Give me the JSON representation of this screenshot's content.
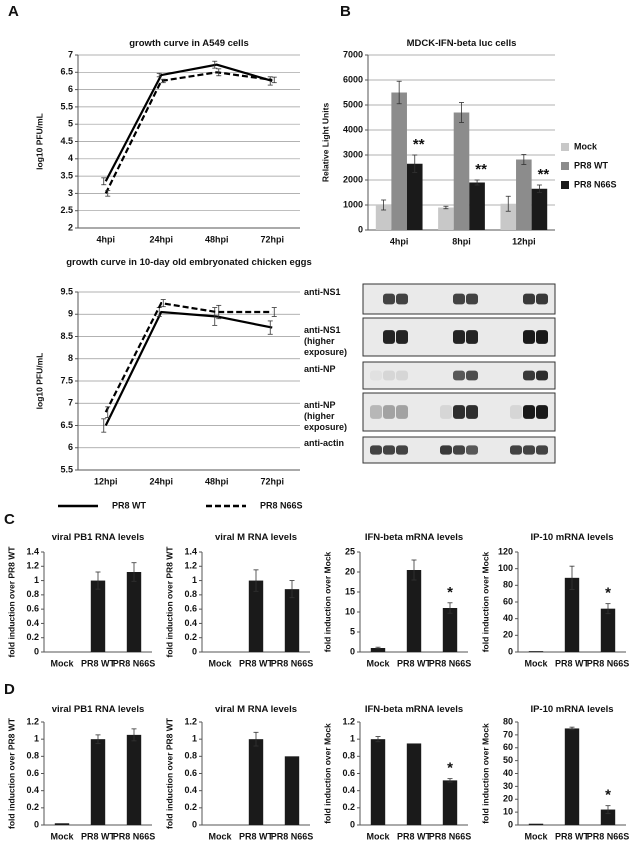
{
  "panel_labels": [
    "A",
    "B",
    "C",
    "D"
  ],
  "chart_data": [
    {
      "type": "line",
      "title": "growth curve in A549 cells",
      "y_label": "log10 PFU/mL",
      "categories": [
        "4hpi",
        "24hpi",
        "48hpi",
        "72hpi"
      ],
      "series": [
        {
          "name": "PR8 WT",
          "color": "#000000",
          "dashed": false,
          "values": [
            3.35,
            6.42,
            6.72,
            6.25
          ],
          "errors": [
            0.1,
            0.05,
            0.1,
            0.12
          ]
        },
        {
          "name": "PR8 N66S",
          "color": "#000000",
          "dashed": true,
          "values": [
            3.0,
            6.25,
            6.5,
            6.28
          ],
          "errors": [
            0.08,
            0.05,
            0.1,
            0.08
          ]
        }
      ],
      "ylim": [
        2,
        7
      ],
      "yticks": [
        2,
        2.5,
        3,
        3.5,
        4,
        4.5,
        5,
        5.5,
        6,
        6.5,
        7
      ],
      "grid": true
    },
    {
      "type": "line",
      "title": "growth curve in 10-day old embryonated chicken eggs",
      "y_label": "log10 PFU/mL",
      "categories": [
        "12hpi",
        "24hpi",
        "48hpi",
        "72hpi"
      ],
      "series": [
        {
          "name": "PR8 WT",
          "color": "#000000",
          "dashed": false,
          "values": [
            6.5,
            9.05,
            8.95,
            8.7
          ],
          "errors": [
            0.15,
            0.1,
            0.2,
            0.15
          ]
        },
        {
          "name": "PR8 N66S",
          "color": "#000000",
          "dashed": true,
          "values": [
            6.8,
            9.25,
            9.05,
            9.05
          ],
          "errors": [
            0.12,
            0.08,
            0.15,
            0.1
          ]
        }
      ],
      "ylim": [
        5.5,
        9.5
      ],
      "yticks": [
        5.5,
        6,
        6.5,
        7,
        7.5,
        8,
        8.5,
        9,
        9.5
      ],
      "grid": true,
      "legend": "bottom"
    },
    {
      "type": "bar",
      "title": "MDCK-IFN-beta luc cells",
      "y_label": "Relative Light Units",
      "categories": [
        "4hpi",
        "8hpi",
        "12hpi"
      ],
      "series": [
        {
          "name": "Mock",
          "color": "#c8c8c8",
          "values": [
            1000,
            900,
            1050
          ],
          "errors": [
            200,
            50,
            300
          ]
        },
        {
          "name": "PR8 WT",
          "color": "#8c8c8c",
          "values": [
            5500,
            4700,
            2820
          ],
          "errors": [
            450,
            400,
            200
          ]
        },
        {
          "name": "PR8 N66S",
          "color": "#1a1a1a",
          "values": [
            2650,
            1900,
            1650
          ],
          "errors": [
            350,
            100,
            150
          ],
          "annotations": [
            "**",
            "**",
            "**"
          ]
        }
      ],
      "ylim": [
        0,
        7000
      ],
      "yticks": [
        0,
        1000,
        2000,
        3000,
        4000,
        5000,
        6000,
        7000
      ],
      "grid": true,
      "legend": "right"
    },
    {
      "type": "bar",
      "title": "viral PB1 RNA levels",
      "y_label": "fold induction over PR8 WT",
      "categories": [
        "Mock",
        "PR8 WT",
        "PR8 N66S"
      ],
      "series": [
        {
          "name": "C viral PB1",
          "color": "#1a1a1a",
          "values": [
            0,
            1.0,
            1.12
          ],
          "errors": [
            null,
            0.12,
            0.13
          ]
        }
      ],
      "ylim": [
        0,
        1.4
      ],
      "yticks": [
        0,
        0.2,
        0.4,
        0.6,
        0.8,
        1,
        1.2,
        1.4
      ],
      "grid": false
    },
    {
      "type": "bar",
      "title": "viral M RNA levels",
      "y_label": "fold induction over PR8 WT",
      "categories": [
        "Mock",
        "PR8 WT",
        "PR8 N66S"
      ],
      "series": [
        {
          "name": "C viral M",
          "color": "#1a1a1a",
          "values": [
            0,
            1.0,
            0.88
          ],
          "errors": [
            null,
            0.15,
            0.12
          ]
        }
      ],
      "ylim": [
        0,
        1.4
      ],
      "yticks": [
        0,
        0.2,
        0.4,
        0.6,
        0.8,
        1,
        1.2,
        1.4
      ],
      "grid": false
    },
    {
      "type": "bar",
      "title": "IFN-beta mRNA levels",
      "y_label": "fold induction over Mock",
      "categories": [
        "Mock",
        "PR8 WT",
        "PR8 N66S"
      ],
      "series": [
        {
          "name": "C IFN-beta",
          "color": "#1a1a1a",
          "values": [
            1,
            20.5,
            11
          ],
          "errors": [
            0.2,
            2.5,
            1.3
          ],
          "annotations": [
            null,
            null,
            "*"
          ]
        }
      ],
      "ylim": [
        0,
        25
      ],
      "yticks": [
        0,
        5,
        10,
        15,
        20,
        25
      ],
      "grid": false
    },
    {
      "type": "bar",
      "title": "IP-10 mRNA levels",
      "y_label": "fold induction over Mock",
      "categories": [
        "Mock",
        "PR8 WT",
        "PR8 N66S"
      ],
      "series": [
        {
          "name": "C IP-10",
          "color": "#1a1a1a",
          "values": [
            1,
            89,
            52
          ],
          "errors": [
            null,
            14,
            6
          ],
          "annotations": [
            null,
            null,
            "*"
          ]
        }
      ],
      "ylim": [
        0,
        120
      ],
      "yticks": [
        0,
        20,
        40,
        60,
        80,
        100,
        120
      ],
      "grid": false
    },
    {
      "type": "bar",
      "title": "viral PB1 RNA levels",
      "y_label": "fold induction over PR8 WT",
      "categories": [
        "Mock",
        "PR8 WT",
        "PR8 N66S"
      ],
      "series": [
        {
          "name": "D viral PB1",
          "color": "#1a1a1a",
          "values": [
            0.02,
            1.0,
            1.05
          ],
          "errors": [
            null,
            0.05,
            0.07
          ]
        }
      ],
      "ylim": [
        0,
        1.2
      ],
      "yticks": [
        0,
        0.2,
        0.4,
        0.6,
        0.8,
        1,
        1.2
      ],
      "grid": false
    },
    {
      "type": "bar",
      "title": "viral M RNA levels",
      "y_label": "fold induction over PR8 WT",
      "categories": [
        "Mock",
        "PR8 WT",
        "PR8 N66S"
      ],
      "series": [
        {
          "name": "D viral M",
          "color": "#1a1a1a",
          "values": [
            0,
            1.0,
            0.8
          ],
          "errors": [
            null,
            0.08,
            null
          ]
        }
      ],
      "ylim": [
        0,
        1.2
      ],
      "yticks": [
        0,
        0.2,
        0.4,
        0.6,
        0.8,
        1,
        1.2
      ],
      "grid": false
    },
    {
      "type": "bar",
      "title": "IFN-beta mRNA levels",
      "y_label": "fold induction over Mock",
      "categories": [
        "Mock",
        "PR8 WT",
        "PR8 N66S"
      ],
      "series": [
        {
          "name": "D IFN-beta",
          "color": "#1a1a1a",
          "values": [
            1.0,
            0.95,
            0.52
          ],
          "errors": [
            0.03,
            null,
            0.02
          ],
          "annotations": [
            null,
            null,
            "*"
          ]
        }
      ],
      "ylim": [
        0,
        1.2
      ],
      "yticks": [
        0,
        0.2,
        0.4,
        0.6,
        0.8,
        1,
        1.2
      ],
      "grid": false
    },
    {
      "type": "bar",
      "title": "IP-10 mRNA levels",
      "y_label": "fold induction over Mock",
      "categories": [
        "Mock",
        "PR8 WT",
        "PR8 N66S"
      ],
      "series": [
        {
          "name": "D IP-10",
          "color": "#1a1a1a",
          "values": [
            1,
            75,
            12
          ],
          "errors": [
            null,
            1,
            3
          ],
          "annotations": [
            null,
            null,
            "*"
          ]
        }
      ],
      "ylim": [
        0,
        80
      ],
      "yticks": [
        0,
        10,
        20,
        30,
        40,
        50,
        60,
        70,
        80
      ],
      "grid": false
    }
  ],
  "blot": {
    "labels": [
      "anti-NS1",
      "anti-NS1 (higher exposure)",
      "anti-NP",
      "anti-NP (higher exposure)",
      "anti-actin"
    ]
  }
}
